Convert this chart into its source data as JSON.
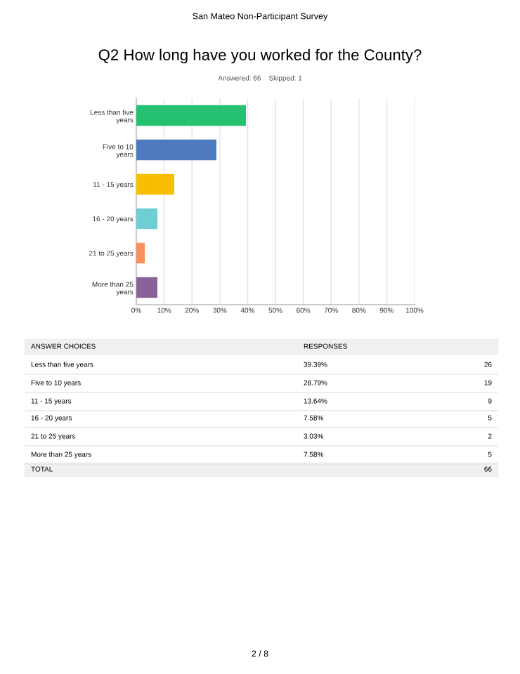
{
  "chart_data": {
    "type": "bar",
    "orientation": "horizontal",
    "title": "Q2 How long have you worked for the County?",
    "subtitle": "Answered: 66    Skipped: 1",
    "categories": [
      "Less than five years",
      "Five to 10 years",
      "11 - 15 years",
      "16 - 20 years",
      "21 to 25 years",
      "More than 25 years"
    ],
    "values": [
      39.39,
      28.79,
      13.64,
      7.58,
      3.03,
      7.58
    ],
    "colors": [
      "#25c070",
      "#4f7abd",
      "#f9be00",
      "#6fcdd4",
      "#f7905b",
      "#8a6199"
    ],
    "xlim": [
      0,
      100
    ],
    "xticks": [
      {
        "value": 0,
        "label": "0%"
      },
      {
        "value": 10,
        "label": "10%"
      },
      {
        "value": 20,
        "label": "20%"
      },
      {
        "value": 30,
        "label": "30%"
      },
      {
        "value": 40,
        "label": "40%"
      },
      {
        "value": 50,
        "label": "50%"
      },
      {
        "value": 60,
        "label": "60%"
      },
      {
        "value": 70,
        "label": "70%"
      },
      {
        "value": 80,
        "label": "80%"
      },
      {
        "value": 90,
        "label": "90%"
      },
      {
        "value": 100,
        "label": "100%"
      }
    ],
    "grid": "x",
    "legend": false,
    "annotations": [
      "San Mateo Non-Participant Survey",
      "ANSWER CHOICES",
      "RESPONSES",
      "39.39%",
      "28.79%",
      "13.64%",
      "7.58%",
      "3.03%",
      "7.58%",
      "26",
      "19",
      "9",
      "5",
      "2",
      "5",
      "TOTAL",
      "66",
      "2 / 8"
    ]
  }
}
